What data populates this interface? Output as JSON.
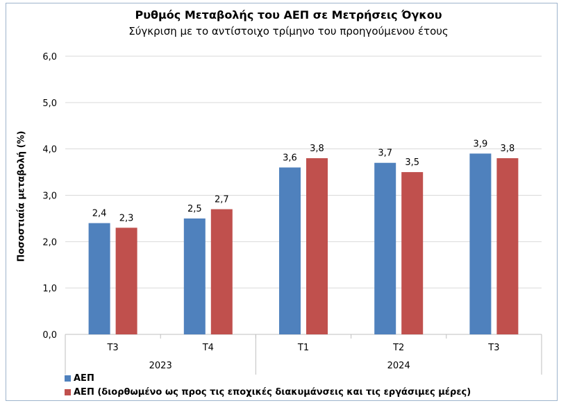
{
  "chart_data": {
    "type": "bar",
    "title": "Ρυθμός Μεταβολής του ΑΕΠ σε Μετρήσεις Όγκου",
    "subtitle": "Σύγκριση με το αντίστοιχο τρίμηνο του προηγούμενου έτους",
    "ylabel": "Ποσοστιαία μεταβολή (%)",
    "xlabel": "",
    "ylim": [
      0,
      6
    ],
    "yticks": [
      "0,0",
      "1,0",
      "2,0",
      "3,0",
      "4,0",
      "5,0",
      "6,0"
    ],
    "grid": true,
    "categories": [
      "Τ3",
      "Τ4",
      "Τ1",
      "Τ2",
      "Τ3"
    ],
    "groups": [
      {
        "label": "2023",
        "count": 2
      },
      {
        "label": "2024",
        "count": 3
      }
    ],
    "series": [
      {
        "name": "ΑΕΠ",
        "color": "#4f81bd",
        "values": [
          2.4,
          2.5,
          3.6,
          3.7,
          3.9
        ],
        "labels": [
          "2,4",
          "2,5",
          "3,6",
          "3,7",
          "3,9"
        ]
      },
      {
        "name": "ΑΕΠ (διορθωμένο ως προς τις εποχικές διακυμάνσεις και τις εργάσιμες μέρες)",
        "color": "#c0504d",
        "values": [
          2.3,
          2.7,
          3.8,
          3.5,
          3.8
        ],
        "labels": [
          "2,3",
          "2,7",
          "3,8",
          "3,5",
          "3,8"
        ]
      }
    ],
    "legend_position": "bottom-left"
  }
}
